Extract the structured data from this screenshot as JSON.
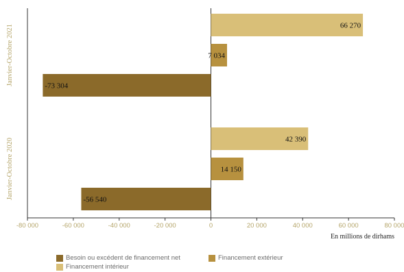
{
  "chart_data": {
    "type": "bar",
    "orientation": "horizontal",
    "groups": [
      "Janvier-Octobre 2021",
      "Janvier-Octobre 2020"
    ],
    "series": [
      {
        "name": "Financement intérieur",
        "color": "#d9bf78",
        "values": [
          66270,
          42390
        ],
        "labels": [
          "66 270",
          "42 390"
        ]
      },
      {
        "name": "Financement extérieur",
        "color": "#b7913f",
        "values": [
          7034,
          14150
        ],
        "labels": [
          "7 034",
          "14 150"
        ]
      },
      {
        "name": "Besoin ou excédent de financement net",
        "color": "#8b6a2a",
        "values": [
          -73304,
          -56540
        ],
        "labels": [
          "-73 304",
          "-56 540"
        ]
      }
    ],
    "xlim": [
      -80000,
      80000
    ],
    "xticks": [
      -80000,
      -60000,
      -40000,
      -20000,
      0,
      20000,
      40000,
      60000,
      80000
    ],
    "xtick_labels": [
      "-80 000",
      "-60 000",
      "-40 000",
      "-20 000",
      "0",
      "20 000",
      "40 000",
      "60 000",
      "80 000"
    ],
    "xlabel": "En millions de dirhams",
    "legend_position": "bottom",
    "grid": false
  },
  "legend": {
    "items": [
      {
        "label": "Besoin ou excédent de financement net",
        "color": "#8b6a2a"
      },
      {
        "label": "Financement extérieur",
        "color": "#b7913f"
      },
      {
        "label": "Financement intérieur",
        "color": "#d9bf78"
      }
    ]
  }
}
